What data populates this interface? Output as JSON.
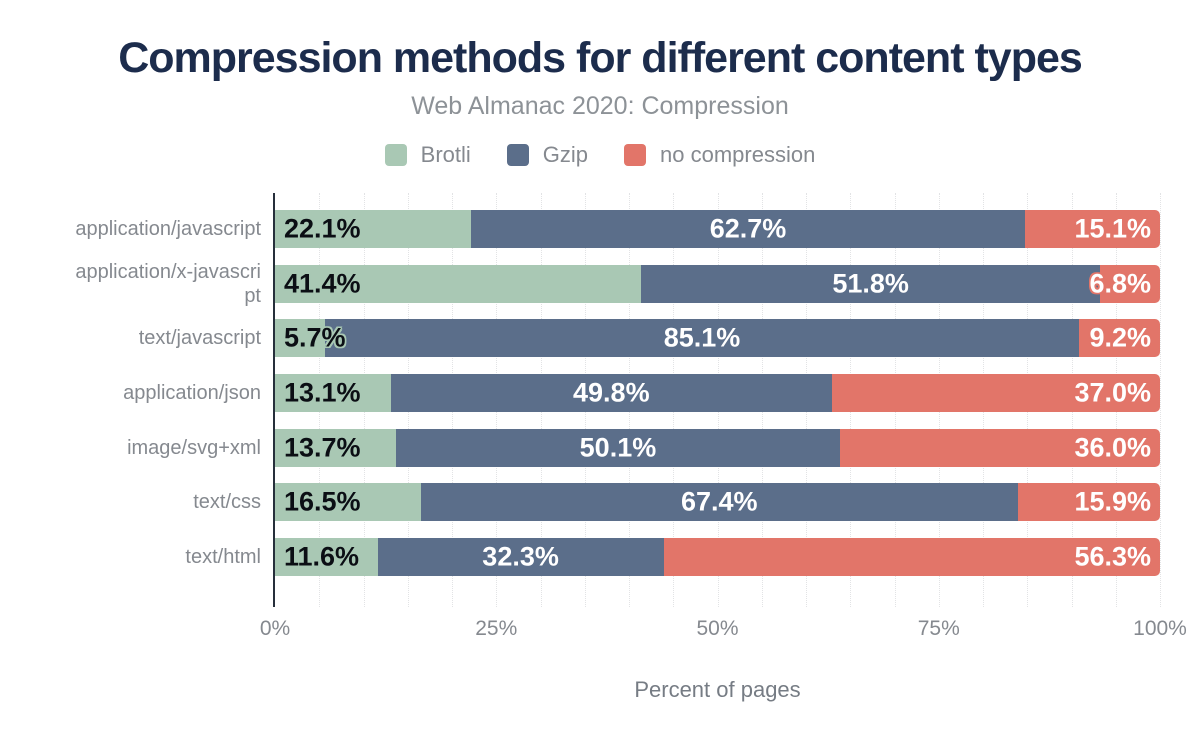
{
  "title": "Compression methods for different content types",
  "subtitle": "Web Almanac 2020: Compression",
  "colors": {
    "title_text": "#1c2c4c",
    "muted_text": "#85898f",
    "axis": "#262f3b",
    "gridline": "#e2e3e5",
    "brotli": "#a9c8b4",
    "gzip": "#5b6e8a",
    "no_compression": "#e27569",
    "dark_value_text": "#0b0e14",
    "light_value_text": "#ffffff"
  },
  "chart_data": {
    "type": "bar",
    "orientation": "horizontal",
    "stacked": true,
    "title": "Compression methods for different content types",
    "subtitle": "Web Almanac 2020: Compression",
    "xlabel": "Percent of pages",
    "ylabel": "",
    "xlim": [
      0,
      100
    ],
    "x_tick_labels": [
      "0%",
      "25%",
      "50%",
      "75%",
      "100%"
    ],
    "x_tick_values": [
      0,
      25,
      50,
      75,
      100
    ],
    "grid": "dotted vertical lines every 5%",
    "legend_position": "top-center",
    "categories": [
      "application/javascript",
      "application/x-javascri\npt",
      "text/javascript",
      "application/json",
      "image/svg+xml",
      "text/css",
      "text/html"
    ],
    "series": [
      {
        "name": "Brotli",
        "color": "#a9c8b4",
        "values": [
          22.1,
          41.4,
          5.7,
          13.1,
          13.7,
          16.5,
          11.6
        ]
      },
      {
        "name": "Gzip",
        "color": "#5b6e8a",
        "values": [
          62.7,
          51.8,
          85.1,
          49.8,
          50.1,
          67.4,
          32.3
        ]
      },
      {
        "name": "no compression",
        "color": "#e27569",
        "values": [
          15.1,
          6.8,
          9.2,
          37.0,
          36.0,
          15.9,
          56.3
        ]
      }
    ],
    "value_label_format": "0.0%"
  }
}
